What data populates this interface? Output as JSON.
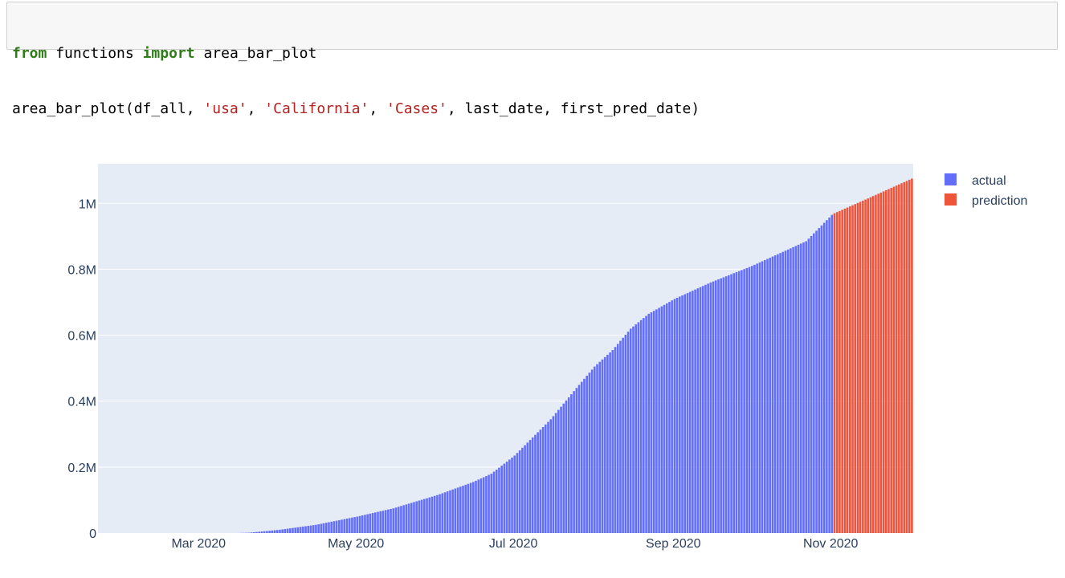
{
  "code": {
    "line1": [
      {
        "text": "from",
        "kind": "kw"
      },
      {
        "text": " functions ",
        "kind": "plain"
      },
      {
        "text": "import",
        "kind": "kw"
      },
      {
        "text": " area_bar_plot",
        "kind": "plain"
      }
    ],
    "line2": [
      {
        "text": "area_bar_plot(df_all, ",
        "kind": "plain"
      },
      {
        "text": "'usa'",
        "kind": "str"
      },
      {
        "text": ", ",
        "kind": "plain"
      },
      {
        "text": "'California'",
        "kind": "str"
      },
      {
        "text": ", ",
        "kind": "plain"
      },
      {
        "text": "'Cases'",
        "kind": "str"
      },
      {
        "text": ", last_date, first_pred_date)",
        "kind": "plain"
      }
    ]
  },
  "colors": {
    "plot_bg": "#e5ecf6",
    "grid": "#ffffff",
    "actual": "#636efa",
    "prediction": "#ef553b",
    "text": "#2a3f5f"
  },
  "chart_data": {
    "type": "bar",
    "title": "",
    "xlabel": "",
    "ylabel": "",
    "x_start": "2020-01-22",
    "x_end": "2020-12-02",
    "ylim": [
      0,
      1120000
    ],
    "y_ticks": [
      {
        "value": 0,
        "label": "0"
      },
      {
        "value": 200000,
        "label": "0.2M"
      },
      {
        "value": 400000,
        "label": "0.4M"
      },
      {
        "value": 600000,
        "label": "0.6M"
      },
      {
        "value": 800000,
        "label": "0.8M"
      },
      {
        "value": 1000000,
        "label": "1M"
      }
    ],
    "x_ticks": [
      {
        "date": "2020-03-01",
        "label": "Mar 2020"
      },
      {
        "date": "2020-05-01",
        "label": "May 2020"
      },
      {
        "date": "2020-07-01",
        "label": "Jul 2020"
      },
      {
        "date": "2020-09-01",
        "label": "Sep 2020"
      },
      {
        "date": "2020-11-01",
        "label": "Nov 2020"
      }
    ],
    "grid": true,
    "legend_position": "top-right",
    "series": [
      {
        "name": "actual",
        "start_date": "2020-01-22",
        "end_date": "2020-11-01",
        "anchors": [
          [
            "2020-01-22",
            0
          ],
          [
            "2020-03-15",
            0
          ],
          [
            "2020-03-20",
            1000
          ],
          [
            "2020-04-01",
            10000
          ],
          [
            "2020-04-15",
            25000
          ],
          [
            "2020-05-01",
            50000
          ],
          [
            "2020-05-15",
            75000
          ],
          [
            "2020-06-01",
            115000
          ],
          [
            "2020-06-15",
            155000
          ],
          [
            "2020-06-22",
            180000
          ],
          [
            "2020-07-01",
            235000
          ],
          [
            "2020-07-15",
            345000
          ],
          [
            "2020-07-25",
            440000
          ],
          [
            "2020-08-01",
            505000
          ],
          [
            "2020-08-08",
            555000
          ],
          [
            "2020-08-15",
            620000
          ],
          [
            "2020-08-22",
            665000
          ],
          [
            "2020-09-01",
            710000
          ],
          [
            "2020-09-15",
            760000
          ],
          [
            "2020-10-01",
            810000
          ],
          [
            "2020-10-15",
            860000
          ],
          [
            "2020-10-22",
            885000
          ],
          [
            "2020-11-01",
            965000
          ]
        ]
      },
      {
        "name": "prediction",
        "start_date": "2020-11-02",
        "end_date": "2020-12-02",
        "anchors": [
          [
            "2020-11-02",
            970000
          ],
          [
            "2020-11-15",
            1015000
          ],
          [
            "2020-12-02",
            1075000
          ]
        ]
      }
    ]
  }
}
